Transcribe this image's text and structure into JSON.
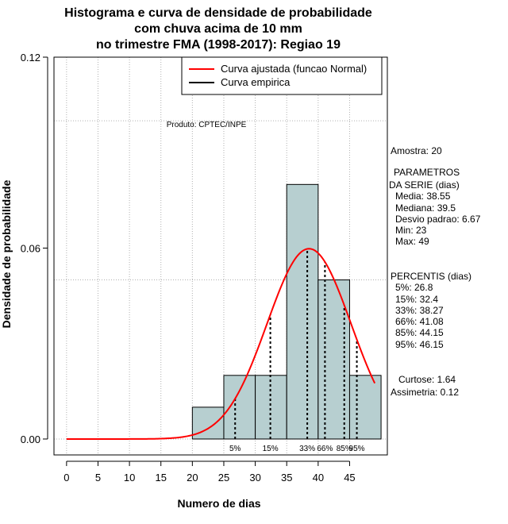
{
  "chart_data": {
    "type": "bar",
    "title_lines": [
      "Histograma e curva de densidade de probabilidade",
      "com chuva acima de 10 mm",
      "no trimestre FMA (1998-2017): Regiao 19"
    ],
    "xlabel": "Numero de dias",
    "ylabel": "Densidade de probabilidade",
    "xlim": [
      -2,
      51
    ],
    "ylim": [
      -0.005,
      0.12
    ],
    "x_ticks": [
      0,
      5,
      10,
      15,
      20,
      25,
      30,
      35,
      40,
      45
    ],
    "y_ticks": [
      0.0,
      0.06,
      0.12
    ],
    "y_tick_labels": [
      "0.00",
      "0.06",
      "0.12"
    ],
    "grid": true,
    "grid_x": [
      0,
      5,
      10,
      15,
      20,
      25,
      30,
      35,
      40,
      45
    ],
    "grid_y": [
      0.0,
      0.05,
      0.1
    ],
    "bins": [
      {
        "start": 20,
        "end": 25,
        "density": 0.01
      },
      {
        "start": 25,
        "end": 30,
        "density": 0.02
      },
      {
        "start": 30,
        "end": 35,
        "density": 0.02
      },
      {
        "start": 35,
        "end": 40,
        "density": 0.08
      },
      {
        "start": 40,
        "end": 45,
        "density": 0.05
      },
      {
        "start": 45,
        "end": 50,
        "density": 0.02
      }
    ],
    "bar_color": "#b7cfd0",
    "normal_curve": {
      "mean": 38.55,
      "sd": 6.67,
      "x_start": 0,
      "x_end": 49,
      "color": "#ff0000"
    },
    "percentile_lines": [
      {
        "label": "5%",
        "x": 26.8
      },
      {
        "label": "15%",
        "x": 32.4
      },
      {
        "label": "33%",
        "x": 38.27
      },
      {
        "label": "66%",
        "x": 41.08
      },
      {
        "label": "85%",
        "x": 44.15
      },
      {
        "label": "95%",
        "x": 46.15
      }
    ],
    "legend": {
      "position": "top-right",
      "entries": [
        {
          "label": "Curva ajustada (funcao Normal)",
          "color": "#ff0000"
        },
        {
          "label": "Curva empirica",
          "color": "#000000"
        }
      ]
    },
    "annotation": "Produto: CPTEC/INPE"
  },
  "stats_panel": {
    "amostra": "Amostra: 20",
    "param_title1": "PARAMETROS",
    "param_title2": "DA SERIE (dias)",
    "media": "Media: 38.55",
    "mediana": "Mediana: 39.5",
    "desvio": "Desvio padrao: 6.67",
    "min": "Min: 23",
    "max": "Max: 49",
    "perc_title": "PERCENTIS (dias)",
    "p5": "5%: 26.8",
    "p15": "15%: 32.4",
    "p33": "33%: 38.27",
    "p66": "66%: 41.08",
    "p85": "85%: 44.15",
    "p95": "95%: 46.15",
    "curtose": "Curtose: 1.64",
    "assimetria": "Assimetria: 0.12"
  }
}
